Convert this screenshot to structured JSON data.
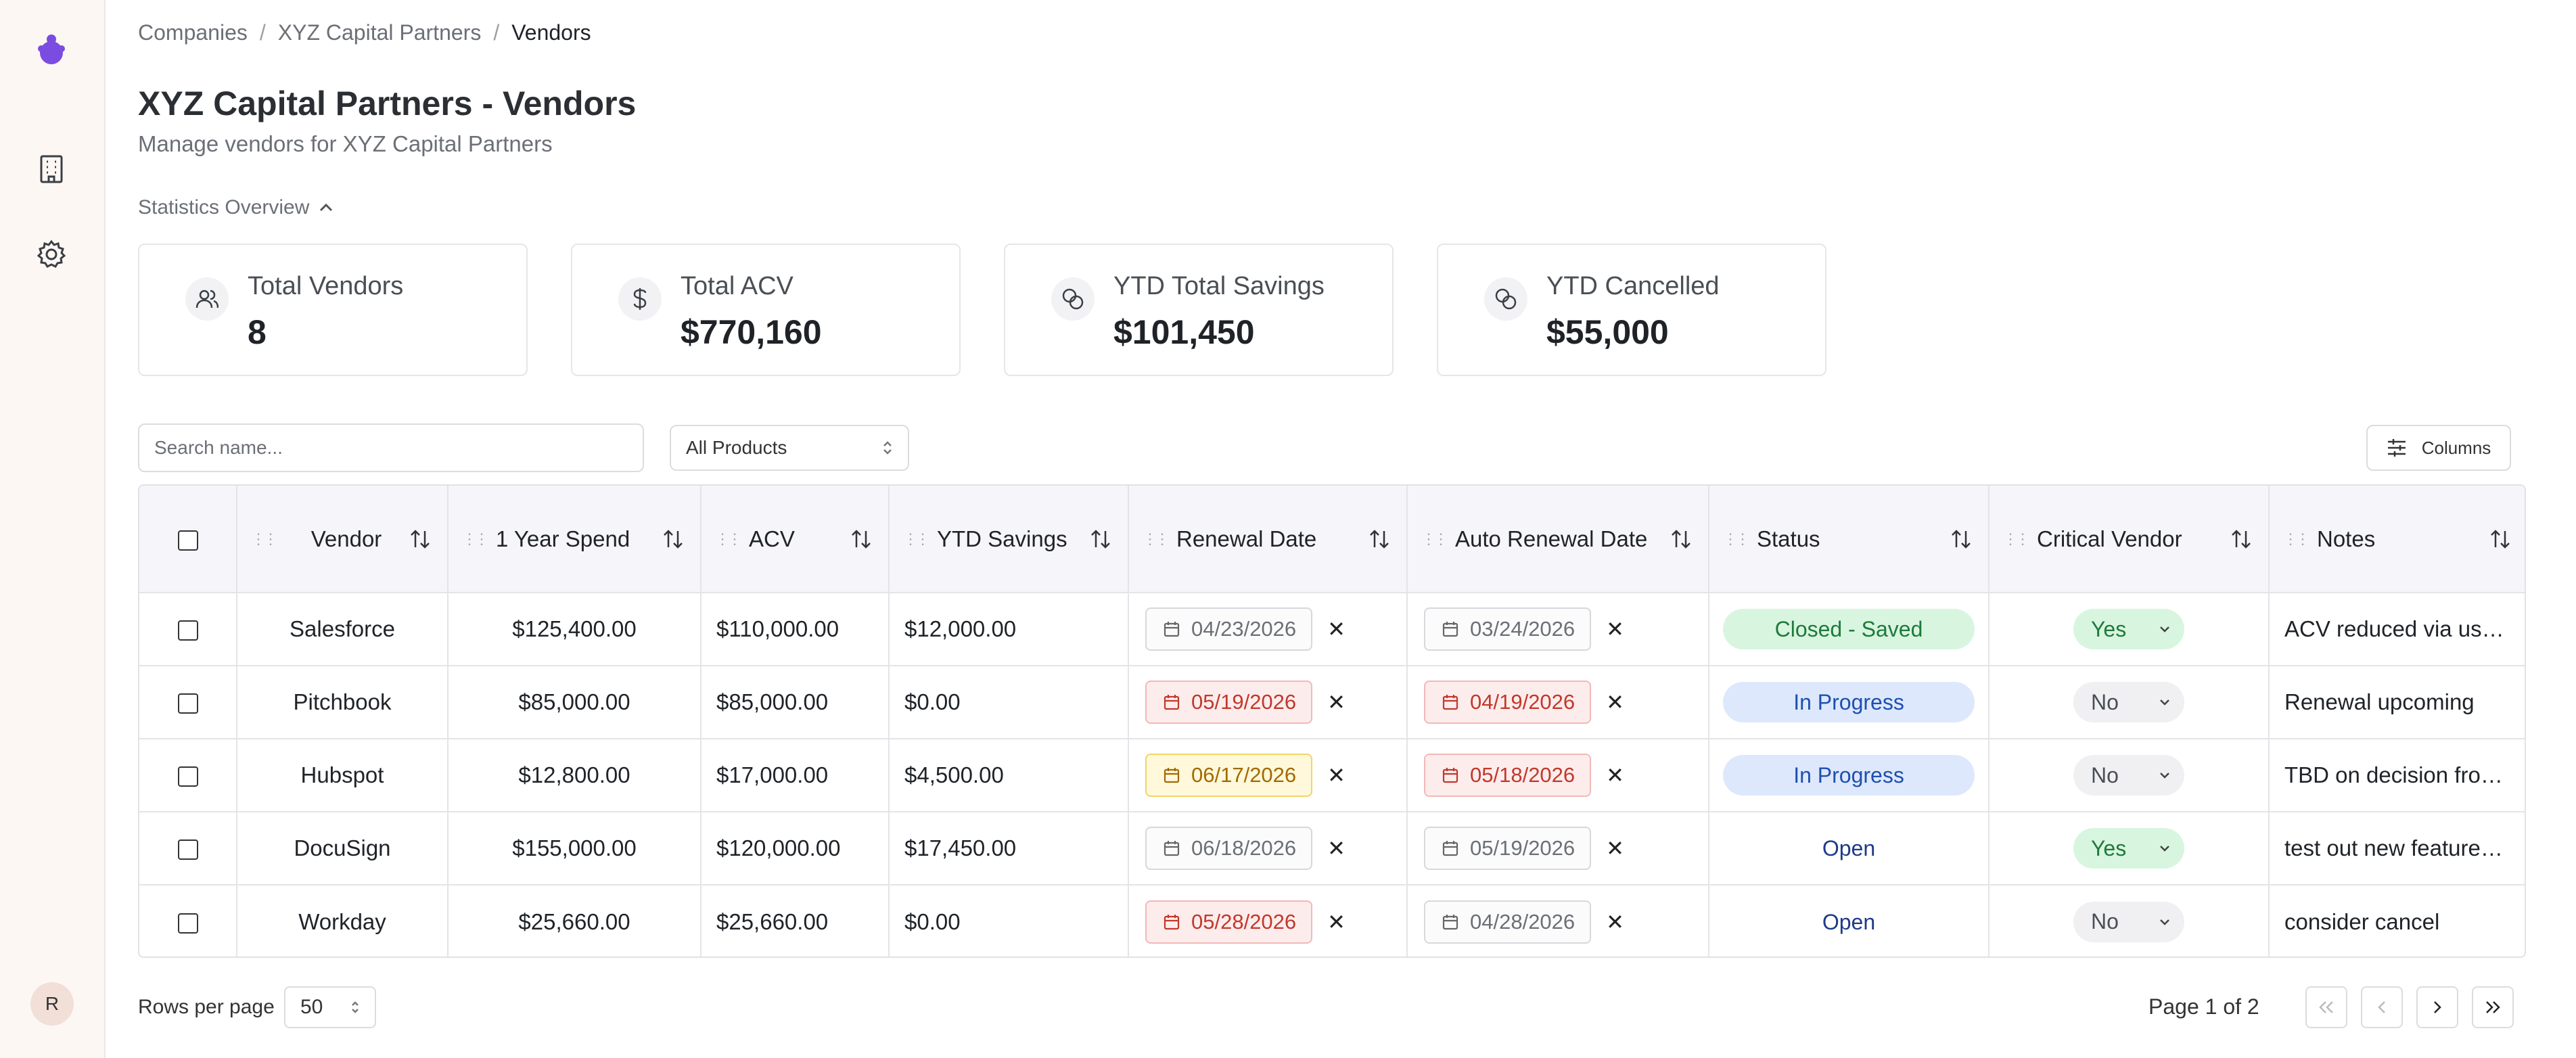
{
  "breadcrumb": {
    "items": [
      "Companies",
      "XYZ Capital Partners",
      "Vendors"
    ]
  },
  "page": {
    "title": "XYZ Capital Partners - Vendors",
    "subtitle": "Manage vendors for XYZ Capital Partners"
  },
  "stats": {
    "toggle_label": "Statistics Overview",
    "cards": [
      {
        "icon": "users-icon",
        "label": "Total Vendors",
        "value": "8"
      },
      {
        "icon": "dollar-icon",
        "label": "Total ACV",
        "value": "$770,160"
      },
      {
        "icon": "coins-icon",
        "label": "YTD Total Savings",
        "value": "$101,450"
      },
      {
        "icon": "coins-icon",
        "label": "YTD Cancelled",
        "value": "$55,000"
      }
    ]
  },
  "toolbar": {
    "search_placeholder": "Search name...",
    "product_filter": "All Products",
    "columns_label": "Columns"
  },
  "table": {
    "columns": [
      "Vendor",
      "1 Year Spend",
      "ACV",
      "YTD Savings",
      "Renewal Date",
      "Auto Renewal Date",
      "Status",
      "Critical Vendor",
      "Notes"
    ],
    "rows": [
      {
        "vendor": "Salesforce",
        "spend": "$125,400.00",
        "acv": "$110,000.00",
        "savings": "$12,000.00",
        "renewal": "04/23/2026",
        "renewal_tone": "neutral",
        "auto": "03/24/2026",
        "auto_tone": "neutral",
        "status": "Closed - Saved",
        "status_tone": "saved",
        "critical": "Yes",
        "notes": "ACV reduced via user..."
      },
      {
        "vendor": "Pitchbook",
        "spend": "$85,000.00",
        "acv": "$85,000.00",
        "savings": "$0.00",
        "renewal": "05/19/2026",
        "renewal_tone": "red",
        "auto": "04/19/2026",
        "auto_tone": "red",
        "status": "In Progress",
        "status_tone": "progress",
        "critical": "No",
        "notes": "Renewal upcoming"
      },
      {
        "vendor": "Hubspot",
        "spend": "$12,800.00",
        "acv": "$17,000.00",
        "savings": "$4,500.00",
        "renewal": "06/17/2026",
        "renewal_tone": "yellow",
        "auto": "05/18/2026",
        "auto_tone": "red",
        "status": "In Progress",
        "status_tone": "progress",
        "critical": "No",
        "notes": "TBD on decision from..."
      },
      {
        "vendor": "DocuSign",
        "spend": "$155,000.00",
        "acv": "$120,000.00",
        "savings": "$17,450.00",
        "renewal": "06/18/2026",
        "renewal_tone": "neutral",
        "auto": "05/19/2026",
        "auto_tone": "neutral",
        "status": "Open",
        "status_tone": "open",
        "critical": "Yes",
        "notes": "test out new features ..."
      },
      {
        "vendor": "Workday",
        "spend": "$25,660.00",
        "acv": "$25,660.00",
        "savings": "$0.00",
        "renewal": "05/28/2026",
        "renewal_tone": "red",
        "auto": "04/28/2026",
        "auto_tone": "neutral",
        "status": "Open",
        "status_tone": "open",
        "critical": "No",
        "notes": "consider cancel"
      }
    ]
  },
  "footer": {
    "rows_per_page_label": "Rows per page",
    "rows_per_page_value": "50",
    "page_info": "Page 1 of 2"
  },
  "user": {
    "avatar_initial": "R"
  },
  "colors": {
    "accent": "#7b4ce0"
  }
}
